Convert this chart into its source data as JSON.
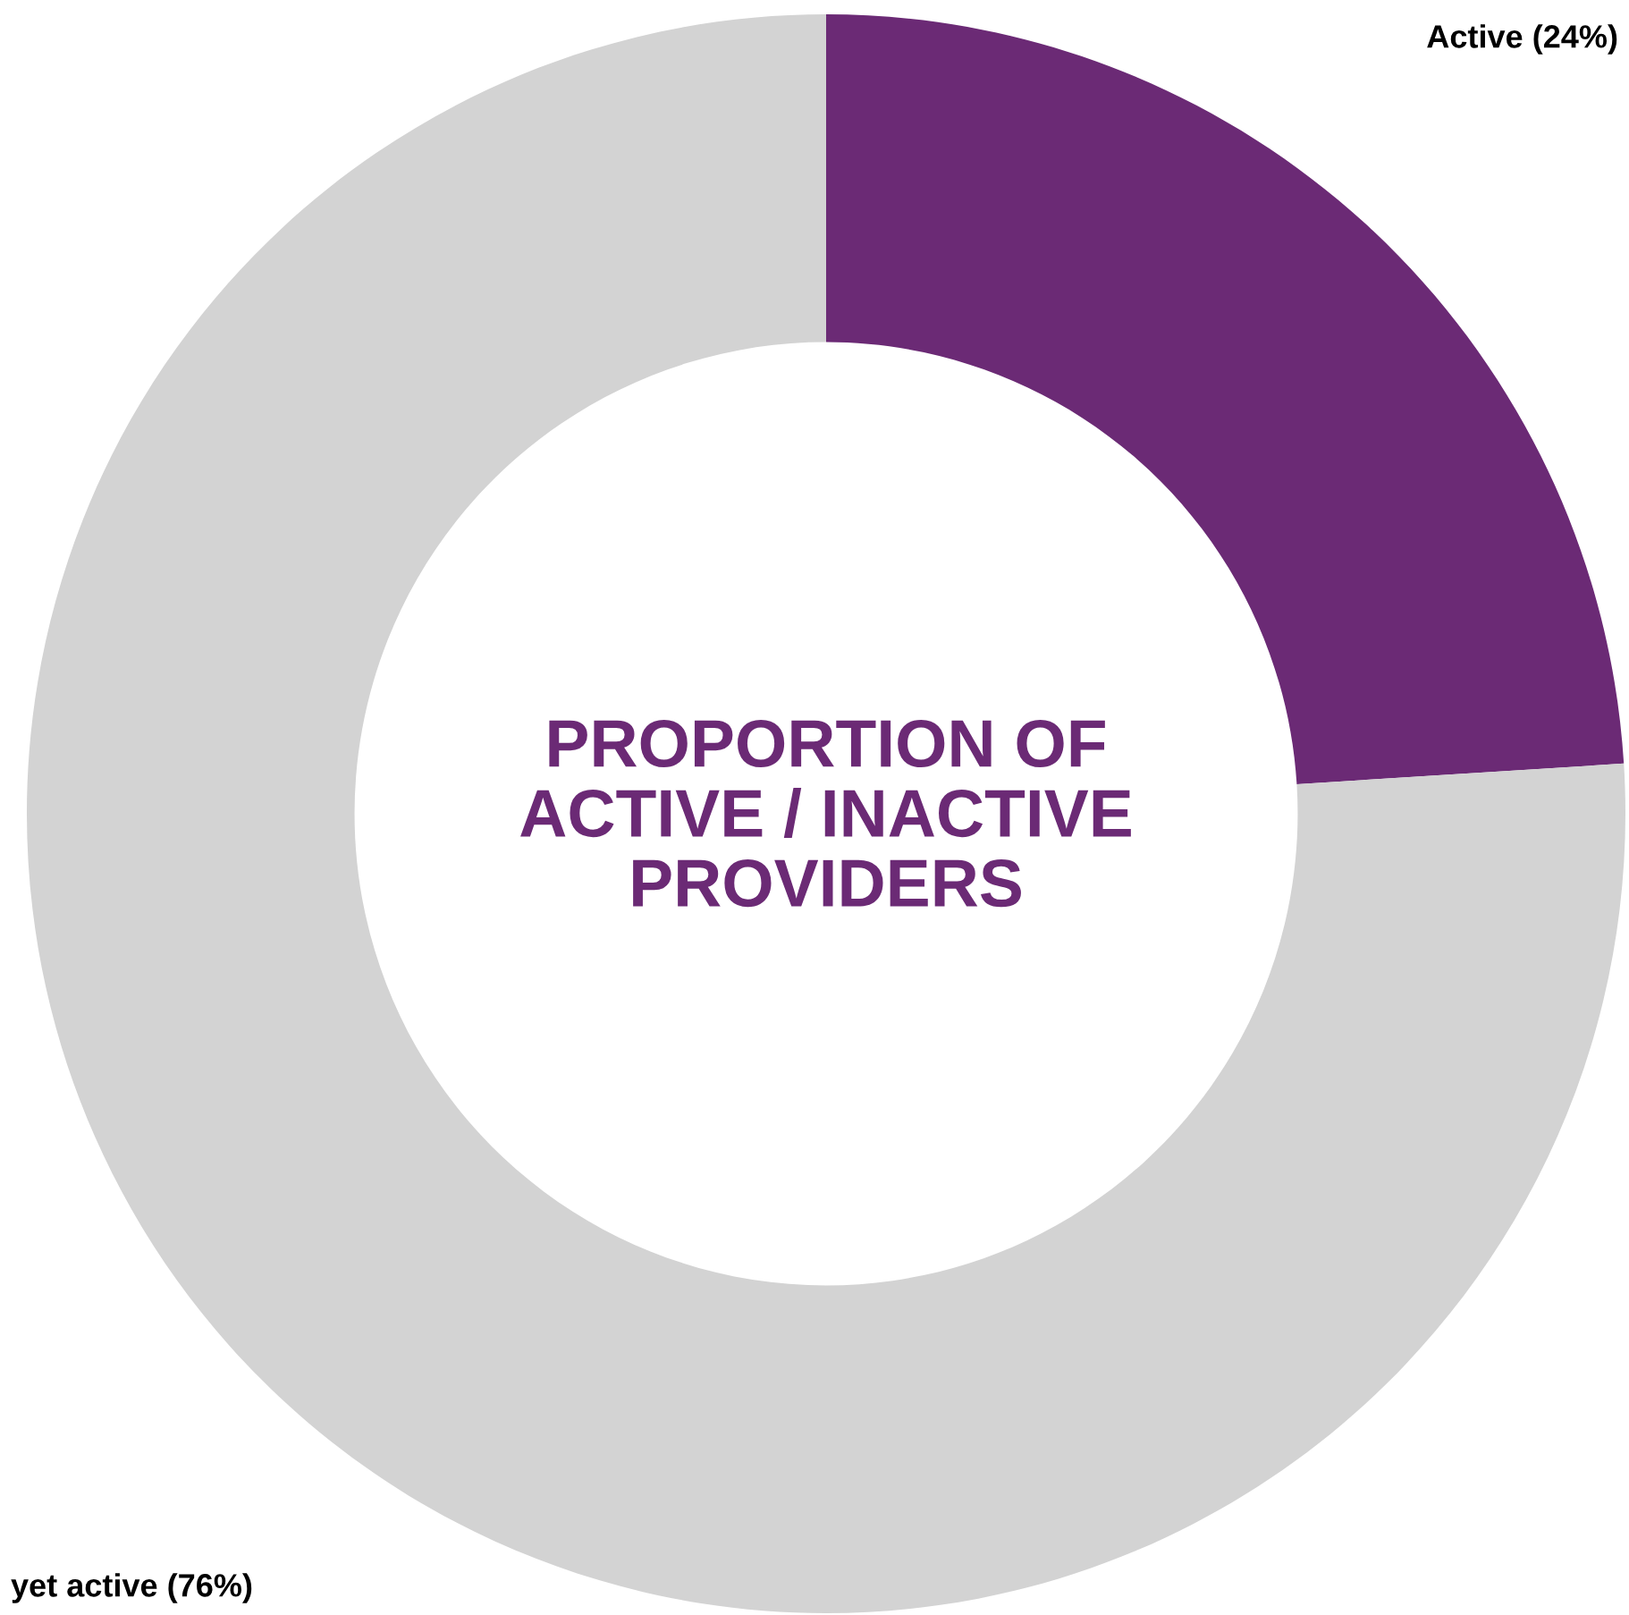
{
  "chart_data": {
    "type": "donut",
    "title": "PROPORTION OF\nACTIVE / INACTIVE\nPROVIDERS",
    "categories": [
      "Active (24%)",
      "yet active (76%)"
    ],
    "values": [
      24,
      76
    ],
    "colors": [
      "#6b2a75",
      "#d3d3d3"
    ],
    "legend": false
  }
}
